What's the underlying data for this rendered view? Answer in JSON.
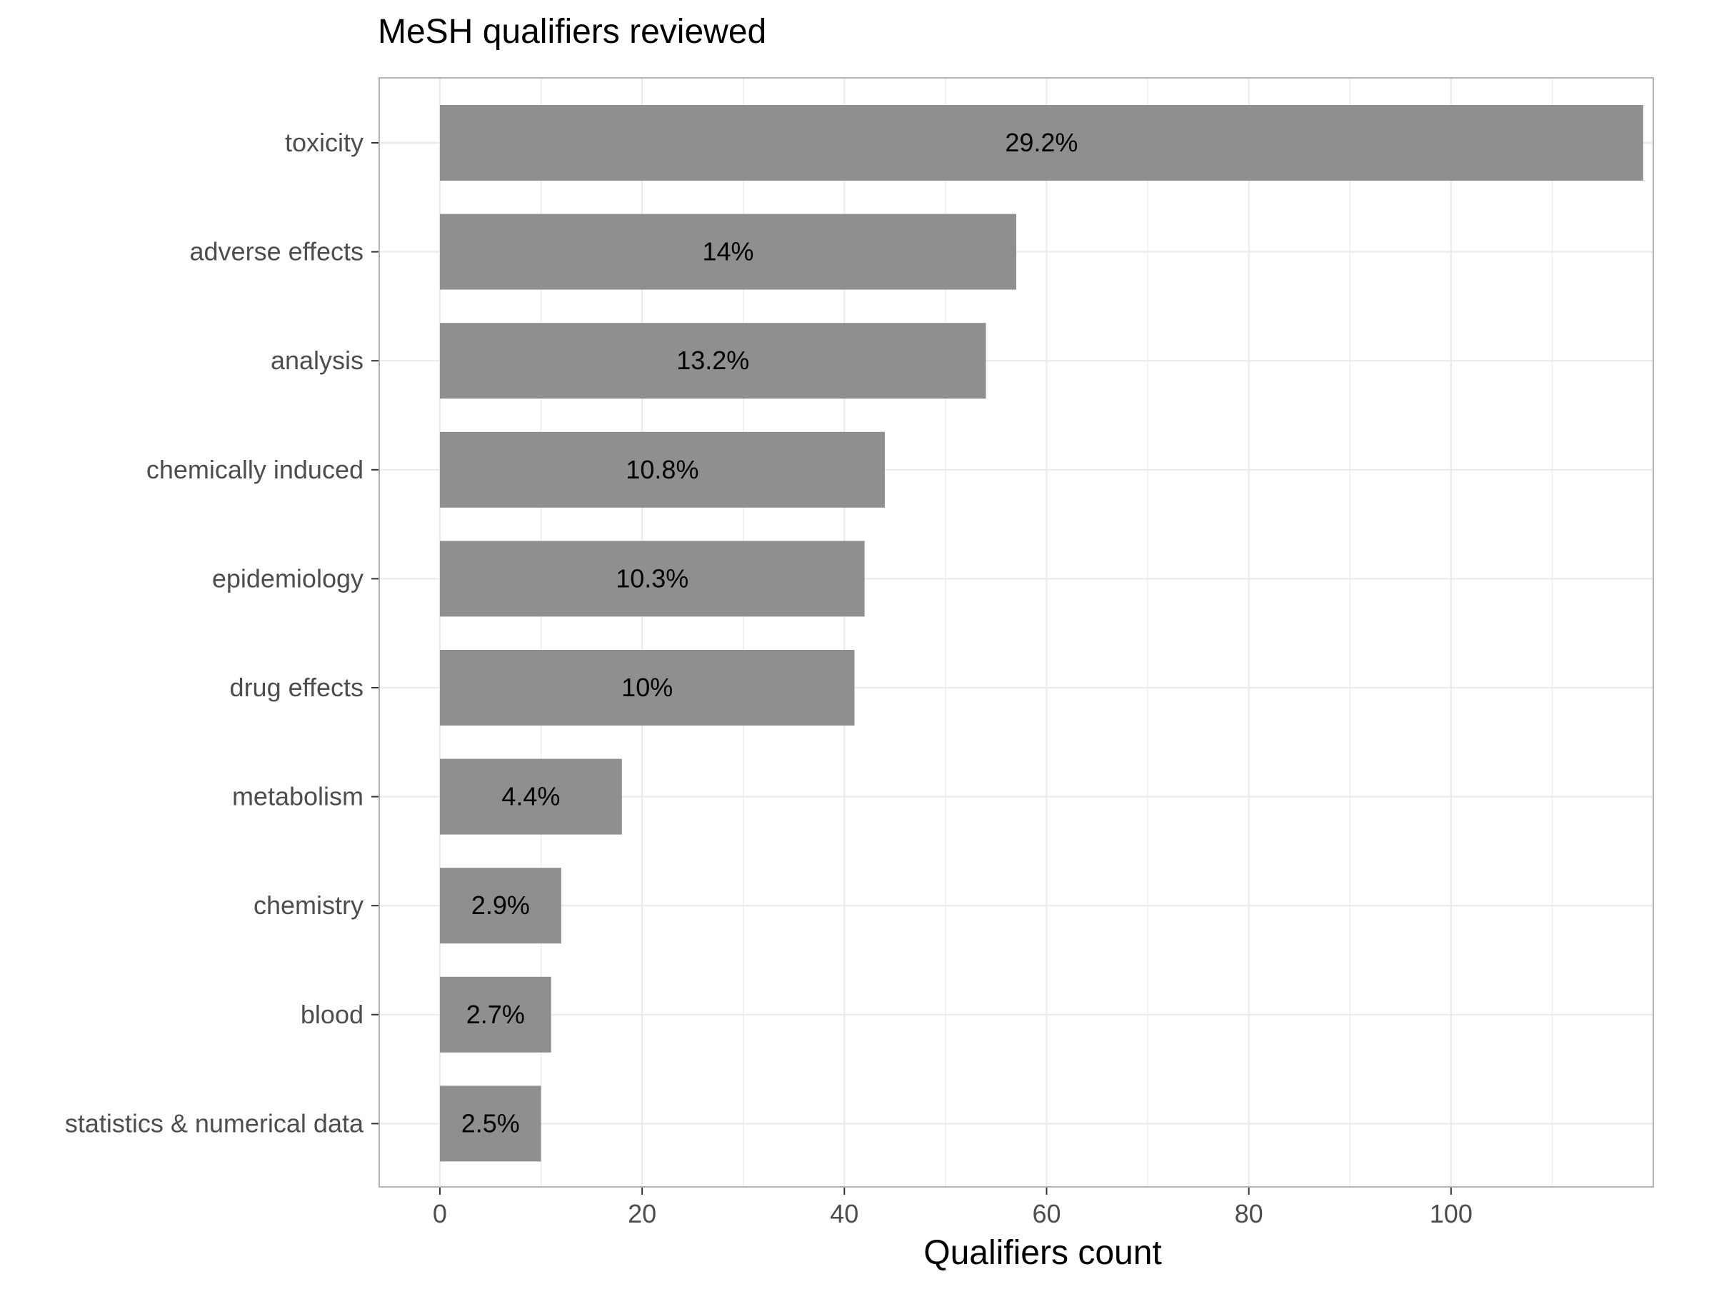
{
  "chart_data": {
    "type": "bar",
    "orientation": "horizontal",
    "title": "MeSH qualifiers reviewed",
    "xlabel": "Qualifiers count",
    "ylabel": "",
    "categories": [
      "toxicity",
      "adverse effects",
      "analysis",
      "chemically induced",
      "epidemiology",
      "drug effects",
      "metabolism",
      "chemistry",
      "blood",
      "statistics & numerical data"
    ],
    "values": [
      119,
      57,
      54,
      44,
      42,
      41,
      18,
      12,
      11,
      10
    ],
    "data_labels": [
      "29.2%",
      "14%",
      "13.2%",
      "10.8%",
      "10.3%",
      "10%",
      "4.4%",
      "2.9%",
      "2.7%",
      "2.5%"
    ],
    "xticks": [
      0,
      20,
      40,
      60,
      80,
      100
    ],
    "xlim": [
      -6,
      120
    ],
    "grid": true,
    "legend": "none",
    "colors": {
      "bar": "#8f8f8f",
      "grid": "#ebebeb",
      "border": "#b3b3b3",
      "tick_text": "#4d4d4d",
      "text": "#000000"
    }
  }
}
